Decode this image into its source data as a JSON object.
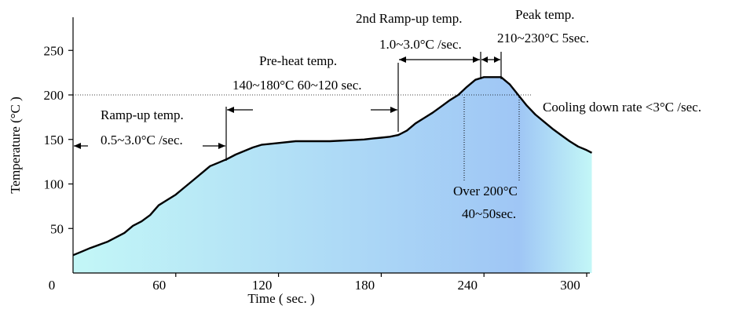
{
  "chart_data": {
    "type": "area",
    "title": "",
    "xlabel": "Time ( sec. )",
    "ylabel": "Temperature (°C )",
    "xlim": [
      0,
      305
    ],
    "ylim": [
      0,
      300
    ],
    "x_ticks": [
      "0",
      "60",
      "120",
      "180",
      "240",
      "300"
    ],
    "y_ticks": [
      "50",
      "100",
      "150",
      "200",
      "250"
    ],
    "grid": false,
    "reference_line_y": 200,
    "gradient_colors": [
      "#c3f7f7",
      "#9fc6f5",
      "#c3f7f7"
    ],
    "series": [
      {
        "x": [
          0,
          5,
          10,
          20,
          30,
          35,
          40,
          45,
          50,
          55,
          60,
          65,
          70,
          75,
          80,
          85,
          90,
          95,
          100,
          105,
          110,
          115,
          120,
          130,
          140,
          150,
          160,
          170,
          175,
          180,
          185,
          190,
          195,
          200,
          205,
          210,
          215,
          220,
          225,
          230,
          235,
          240,
          245,
          250,
          255,
          260,
          265,
          270,
          275,
          280,
          285,
          290,
          295,
          300,
          303
        ],
        "y": [
          20,
          24,
          28,
          35,
          45,
          53,
          58,
          65,
          76,
          82,
          88,
          96,
          104,
          112,
          120,
          124,
          128,
          133,
          137,
          141,
          144,
          145,
          146,
          148,
          148,
          148,
          149,
          150,
          151,
          152,
          153,
          155,
          160,
          168,
          174,
          180,
          187,
          194,
          200,
          209,
          217,
          220,
          220,
          220,
          212,
          200,
          188,
          178,
          170,
          162,
          155,
          148,
          142,
          138,
          135
        ]
      }
    ]
  },
  "annotations": {
    "ramp_up_title": "Ramp-up temp.",
    "ramp_up_rate": "0.5~3.0°C /sec.",
    "preheat_title": "Pre-heat temp.",
    "preheat_range": "140~180°C 60~120 sec.",
    "ramp2_title": "2nd Ramp-up temp.",
    "ramp2_rate": "1.0~3.0°C /sec.",
    "peak_title": "Peak temp.",
    "peak_range": "210~230°C 5sec.",
    "cooling": "Cooling down rate <3°C /sec.",
    "over200_title": "Over 200°C",
    "over200_time": "40~50sec."
  }
}
